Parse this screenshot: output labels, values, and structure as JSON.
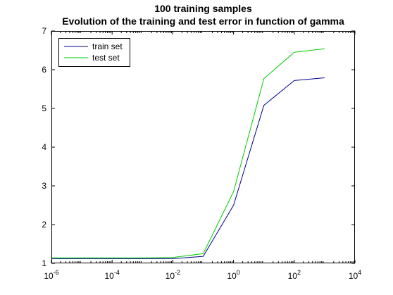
{
  "chart_data": {
    "type": "line",
    "title": "100 training samples",
    "subtitle": "Evolution of the training and test error in function of gamma",
    "xlabel": "",
    "ylabel": "",
    "xscale": "log",
    "xlim": [
      1e-06,
      10000
    ],
    "ylim": [
      1,
      7
    ],
    "x_ticks": [
      {
        "base": "10",
        "exp": "-6"
      },
      {
        "base": "10",
        "exp": "-4"
      },
      {
        "base": "10",
        "exp": "-2"
      },
      {
        "base": "10",
        "exp": "0"
      },
      {
        "base": "10",
        "exp": "2"
      },
      {
        "base": "10",
        "exp": "4"
      }
    ],
    "y_ticks": [
      "1",
      "2",
      "3",
      "4",
      "5",
      "6",
      "7"
    ],
    "grid": false,
    "legend_position": "top-left",
    "x": [
      1e-06,
      1e-05,
      0.0001,
      0.001,
      0.01,
      0.1,
      1,
      10,
      100,
      1000
    ],
    "series": [
      {
        "name": "train set",
        "color": "#00008b",
        "values": [
          1.12,
          1.12,
          1.12,
          1.12,
          1.12,
          1.18,
          2.5,
          5.08,
          5.72,
          5.79
        ]
      },
      {
        "name": "test set",
        "color": "#00cc00",
        "values": [
          1.14,
          1.14,
          1.14,
          1.14,
          1.15,
          1.25,
          2.85,
          5.77,
          6.45,
          6.54
        ]
      }
    ]
  }
}
